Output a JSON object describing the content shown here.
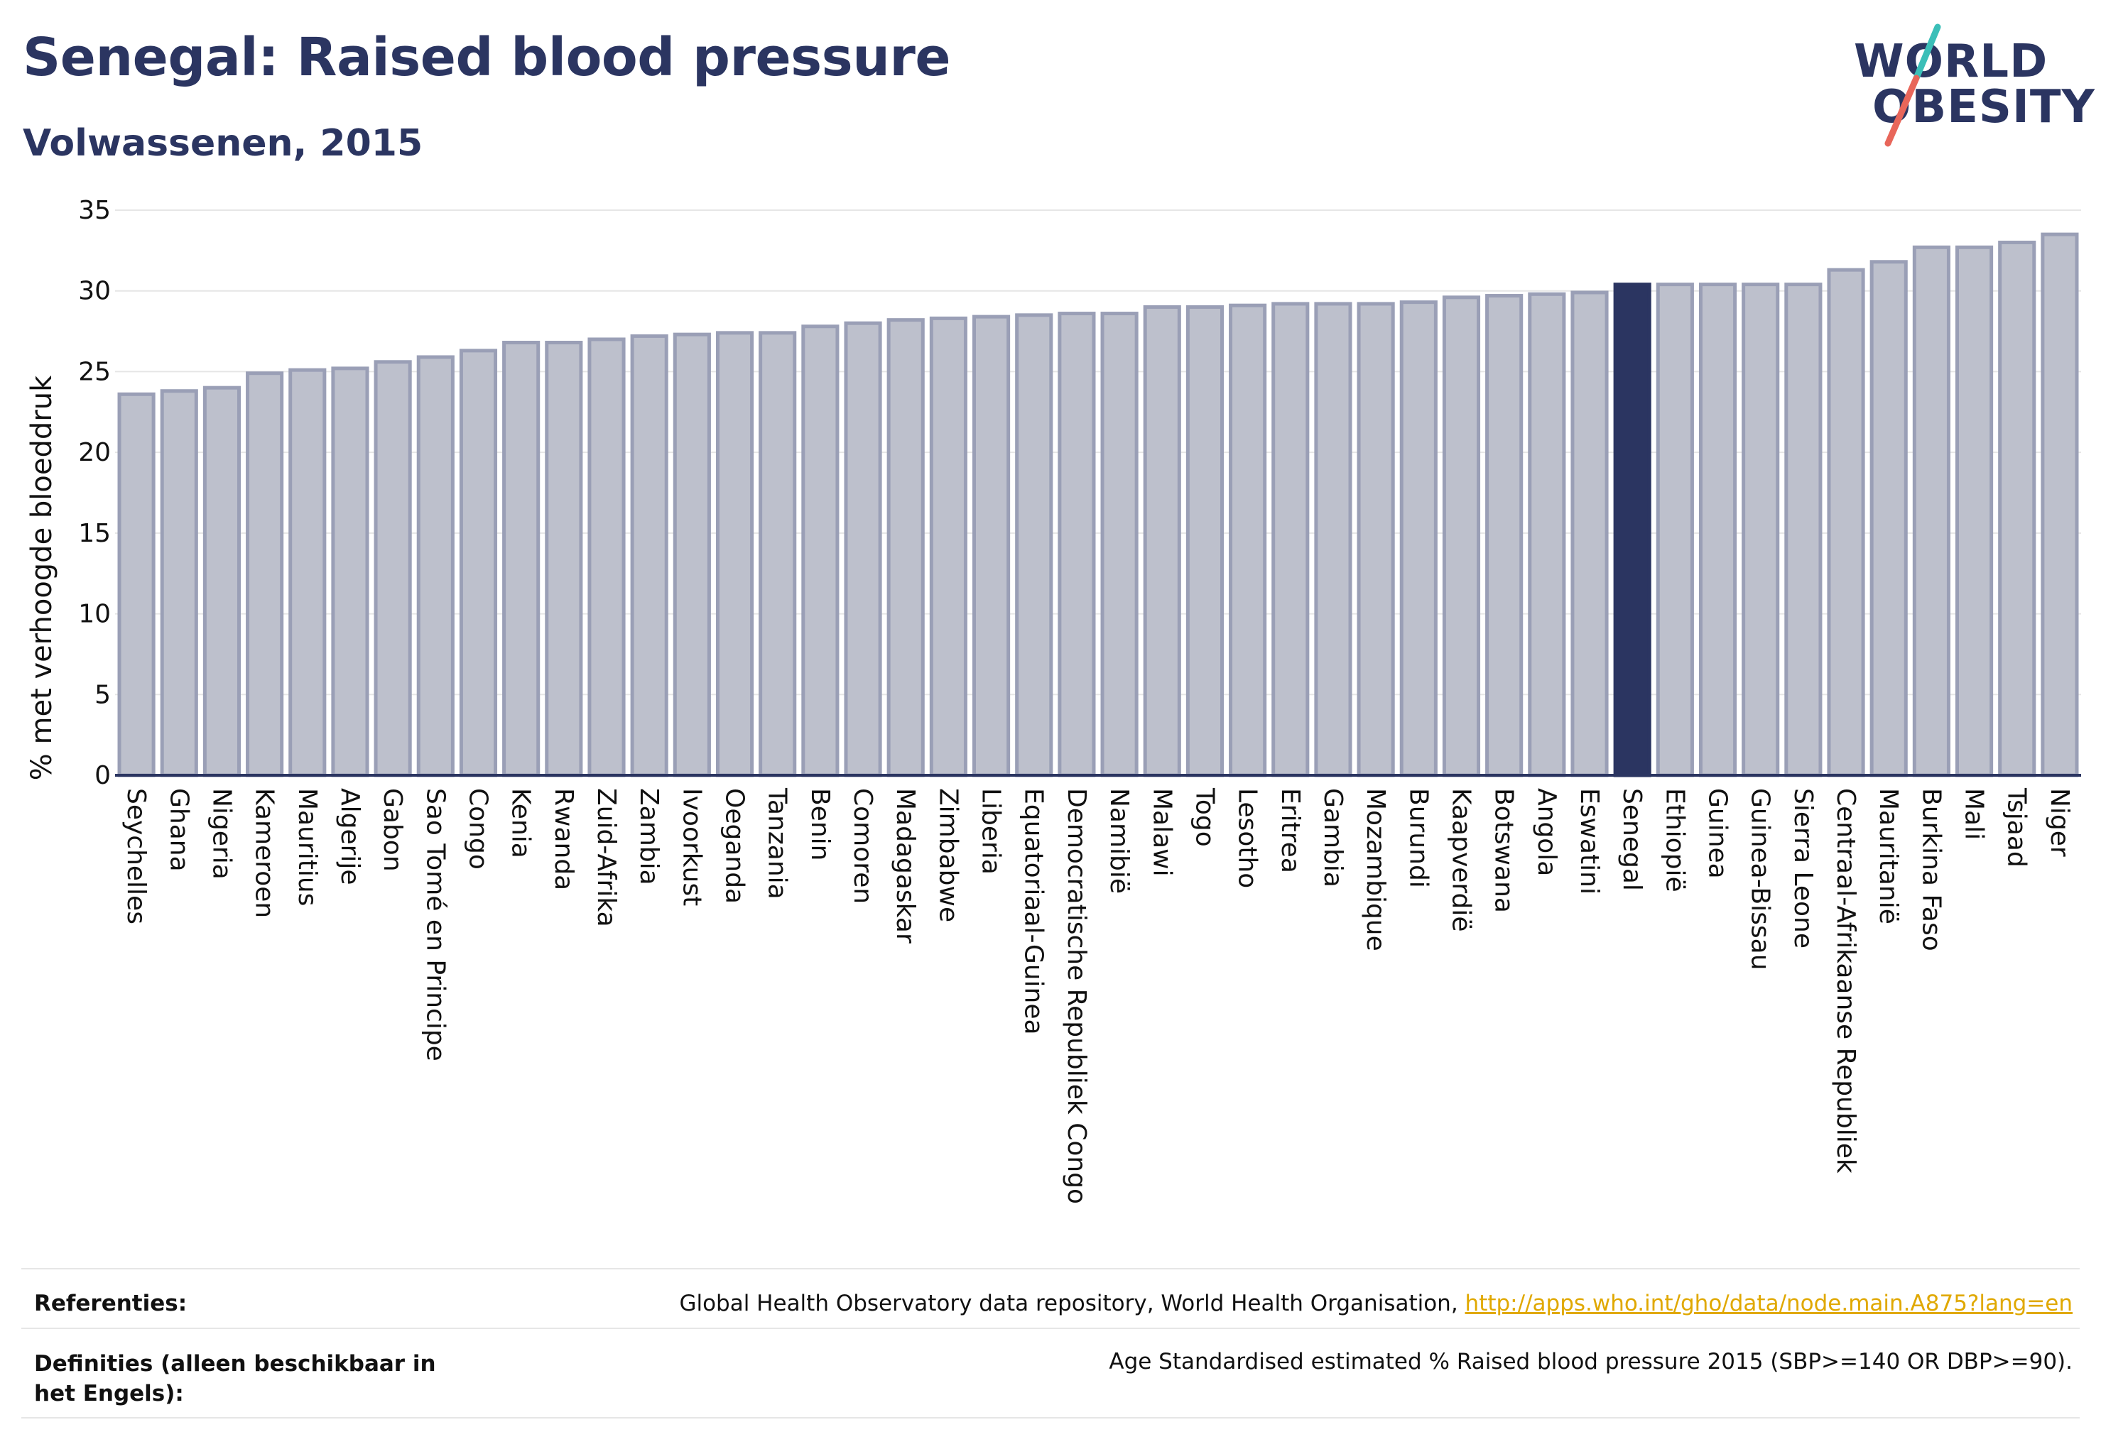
{
  "header": {
    "title": "Senegal: Raised blood pressure",
    "subtitle": "Volwassenen, 2015"
  },
  "logo": {
    "line1": "WORLD",
    "line2": "OBESITY",
    "slash_colors": [
      "#3bbfb8",
      "#e8665a"
    ]
  },
  "colors": {
    "bar_fill": "#bdc0cc",
    "bar_border": "#9a9fb6",
    "highlight": "#2b3561",
    "grid": "#e6e6e6",
    "axis": "#2b3561"
  },
  "chart_data": {
    "type": "bar",
    "ylabel": "% met verhoogde bloeddruk",
    "ylim": [
      0,
      35
    ],
    "yticks": [
      0,
      5,
      10,
      15,
      20,
      25,
      30,
      35
    ],
    "grid": true,
    "highlight": "Senegal",
    "categories": [
      "Seychelles",
      "Ghana",
      "Nigeria",
      "Kameroen",
      "Mauritius",
      "Algerije",
      "Gabon",
      "Sao Tomé en Principe",
      "Congo",
      "Kenia",
      "Rwanda",
      "Zuid-Afrika",
      "Zambia",
      "Ivoorkust",
      "Oeganda",
      "Tanzania",
      "Benin",
      "Comoren",
      "Madagaskar",
      "Zimbabwe",
      "Liberia",
      "Equatoriaal-Guinea",
      "Democratische Republiek Congo",
      "Namibië",
      "Malawi",
      "Togo",
      "Lesotho",
      "Eritrea",
      "Gambia",
      "Mozambique",
      "Burundi",
      "Kaapverdië",
      "Botswana",
      "Angola",
      "Eswatini",
      "Senegal",
      "Ethiopië",
      "Guinea",
      "Guinea-Bissau",
      "Sierra Leone",
      "Centraal-Afrikaanse Republiek",
      "Mauritanië",
      "Burkina Faso",
      "Mali",
      "Tsjaad",
      "Niger"
    ],
    "values": [
      23.6,
      23.8,
      24.0,
      24.9,
      25.1,
      25.2,
      25.6,
      25.9,
      26.3,
      26.8,
      26.8,
      27.0,
      27.2,
      27.3,
      27.4,
      27.4,
      27.8,
      28.0,
      28.2,
      28.3,
      28.4,
      28.5,
      28.6,
      28.6,
      29.0,
      29.0,
      29.1,
      29.2,
      29.2,
      29.2,
      29.3,
      29.6,
      29.7,
      29.8,
      29.9,
      30.4,
      30.4,
      30.4,
      30.4,
      30.4,
      31.3,
      31.8,
      32.7,
      32.7,
      33.0,
      33.5
    ]
  },
  "footer": {
    "references_label": "Referenties:",
    "references_text": "Global Health Observatory data repository, World Health Organisation, ",
    "references_link": "http://apps.who.int/gho/data/node.main.A875?lang=en",
    "definitions_label": "Definities (alleen beschikbaar in het Engels):",
    "definitions_text": "Age Standardised estimated % Raised blood pressure 2015 (SBP>=140 OR DBP>=90)."
  }
}
